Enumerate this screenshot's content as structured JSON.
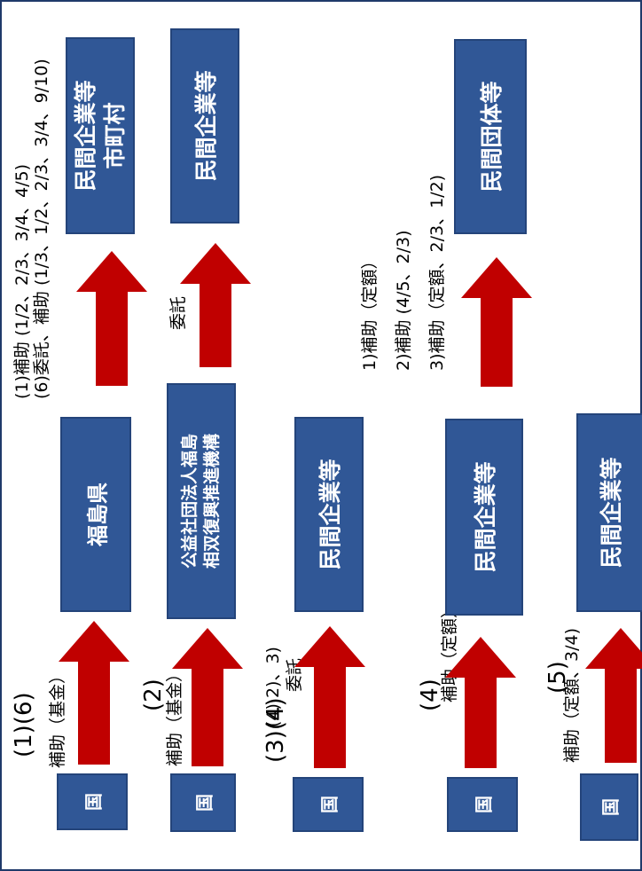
{
  "row1": {
    "num": "(1)(6)",
    "origin": "国",
    "label": "補助（基金）",
    "mid": "福島県",
    "note_lines": [
      "(1)補助 (1/2、2/3、3/4、4/5)",
      "(6)委託、補助 (1/3、1/2、2/3、3/4、9/10)"
    ],
    "target_line1": "民間企業等",
    "target_line2": "市町村"
  },
  "row2": {
    "num": "(2)",
    "origin": "国",
    "label": "補助（基金）",
    "mid_line1": "公益社団法人福島",
    "mid_line2": "相双復興推進機構",
    "note": "委託",
    "target": "民間企業等"
  },
  "row3": {
    "num": "(3)(4)",
    "origin": "国",
    "label_line1": "(4) 2)、3)",
    "label_line2": "委託",
    "target": "民間企業等"
  },
  "row4": {
    "num": "(4)",
    "origin": "国",
    "label": "補助（定額）",
    "mid": "民間企業等",
    "note_lines": [
      "1)補助（定額）",
      "2)補助 (4/5、2/3)",
      "3)補助（定額、2/3、1/2)"
    ],
    "target": "民間団体等"
  },
  "row5": {
    "num": "(5)",
    "origin": "国",
    "label": "補助（定額、3/4)",
    "target": "民間企業等"
  }
}
